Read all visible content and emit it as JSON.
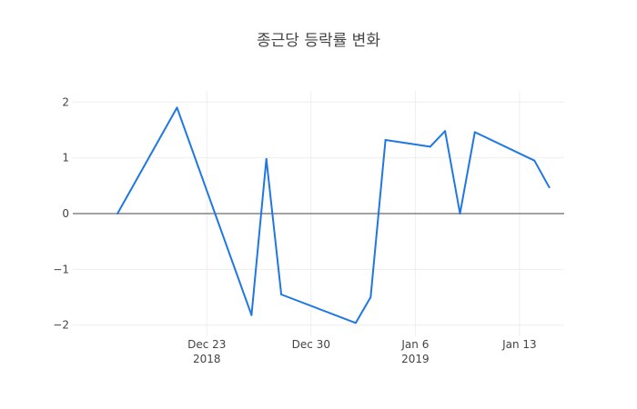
{
  "chart_data": {
    "type": "line",
    "title": "종근당 등락률 변화",
    "xlabel": "",
    "ylabel": "",
    "x_type": "date",
    "xlim": [
      "2018-12-14",
      "2019-01-16"
    ],
    "ylim": [
      -2.2,
      2.2
    ],
    "grid": true,
    "x_ticks": [
      {
        "date": "2018-12-23",
        "label": "Dec 23",
        "sublabel": "2018"
      },
      {
        "date": "2018-12-30",
        "label": "Dec 30",
        "sublabel": ""
      },
      {
        "date": "2019-01-06",
        "label": "Jan 6",
        "sublabel": "2019"
      },
      {
        "date": "2019-01-13",
        "label": "Jan 13",
        "sublabel": ""
      }
    ],
    "y_ticks": [
      {
        "value": 2,
        "label": "2"
      },
      {
        "value": 1,
        "label": "1"
      },
      {
        "value": 0,
        "label": "0"
      },
      {
        "value": -1,
        "label": "−1"
      },
      {
        "value": -2,
        "label": "−2"
      }
    ],
    "series": [
      {
        "color": "#1f77e4",
        "x": [
          "2018-12-17",
          "2018-12-21",
          "2018-12-26",
          "2018-12-27",
          "2018-12-28",
          "2019-01-02",
          "2019-01-03",
          "2019-01-04",
          "2019-01-07",
          "2019-01-08",
          "2019-01-09",
          "2019-01-10",
          "2019-01-14",
          "2019-01-15"
        ],
        "y": [
          0.0,
          1.9,
          -1.82,
          0.98,
          -1.45,
          -1.96,
          -1.5,
          1.32,
          1.2,
          1.48,
          0.0,
          1.46,
          0.95,
          0.47
        ]
      }
    ]
  }
}
